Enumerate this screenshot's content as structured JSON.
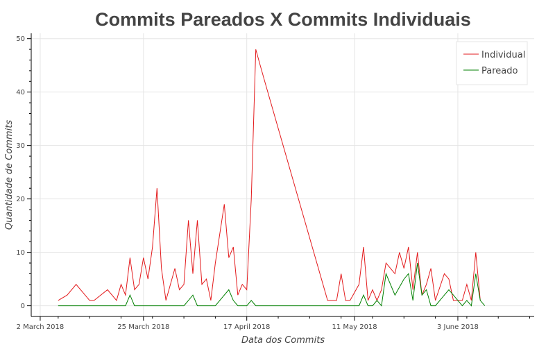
{
  "chart_data": {
    "type": "line",
    "title": "Commits Pareados X Commits Individuais",
    "xlabel": "Data dos Commits",
    "ylabel": "Quantidade de Commits",
    "xlim": [
      "2018-02-28",
      "2018-06-20"
    ],
    "ylim": [
      -2,
      51
    ],
    "x_ticks": [
      {
        "date": "2018-03-02",
        "label": "2 March 2018"
      },
      {
        "date": "2018-03-25",
        "label": "25 March 2018"
      },
      {
        "date": "2018-04-17",
        "label": "17 April 2018"
      },
      {
        "date": "2018-05-11",
        "label": "11 May 2018"
      },
      {
        "date": "2018-06-03",
        "label": "3 June 2018"
      }
    ],
    "x_minor_ticks": [
      "2018-03-06",
      "2018-03-13",
      "2018-03-20",
      "2018-03-27",
      "2018-04-03",
      "2018-04-10",
      "2018-04-24",
      "2018-05-01",
      "2018-05-08",
      "2018-05-15",
      "2018-05-22",
      "2018-05-29",
      "2018-06-05",
      "2018-06-12",
      "2018-06-19"
    ],
    "y_ticks": [
      0,
      10,
      20,
      30,
      40,
      50
    ],
    "grid": true,
    "legend": "top-right",
    "series": [
      {
        "name": "Individual",
        "color": "#e31a1c",
        "x": [
          "2018-03-06",
          "2018-03-08",
          "2018-03-10",
          "2018-03-13",
          "2018-03-14",
          "2018-03-17",
          "2018-03-19",
          "2018-03-20",
          "2018-03-21",
          "2018-03-22",
          "2018-03-23",
          "2018-03-24",
          "2018-03-25",
          "2018-03-26",
          "2018-03-27",
          "2018-03-28",
          "2018-03-29",
          "2018-03-30",
          "2018-04-01",
          "2018-04-02",
          "2018-04-03",
          "2018-04-04",
          "2018-04-05",
          "2018-04-06",
          "2018-04-07",
          "2018-04-08",
          "2018-04-09",
          "2018-04-10",
          "2018-04-12",
          "2018-04-13",
          "2018-04-14",
          "2018-04-15",
          "2018-04-16",
          "2018-04-17",
          "2018-04-18",
          "2018-04-19",
          "2018-04-20",
          "2018-04-21",
          "2018-05-05",
          "2018-05-07",
          "2018-05-08",
          "2018-05-09",
          "2018-05-10",
          "2018-05-12",
          "2018-05-13",
          "2018-05-14",
          "2018-05-15",
          "2018-05-16",
          "2018-05-17",
          "2018-05-18",
          "2018-05-20",
          "2018-05-21",
          "2018-05-22",
          "2018-05-23",
          "2018-05-24",
          "2018-05-25",
          "2018-05-26",
          "2018-05-27",
          "2018-05-28",
          "2018-05-29",
          "2018-05-31",
          "2018-06-01",
          "2018-06-02",
          "2018-06-03",
          "2018-06-04",
          "2018-06-05",
          "2018-06-06",
          "2018-06-07",
          "2018-06-08"
        ],
        "values": [
          1,
          2,
          4,
          1,
          1,
          3,
          1,
          4,
          2,
          9,
          3,
          4,
          9,
          5,
          11,
          22,
          7,
          1,
          7,
          3,
          4,
          16,
          6,
          16,
          4,
          5,
          1,
          8,
          19,
          9,
          11,
          2,
          4,
          3,
          20,
          48,
          45,
          42,
          1,
          1,
          6,
          1,
          1,
          4,
          11,
          1,
          3,
          1,
          3,
          8,
          6,
          10,
          7,
          11,
          3,
          10,
          2,
          4,
          7,
          1,
          6,
          5,
          1,
          1,
          1,
          4,
          1,
          10,
          1
        ]
      },
      {
        "name": "Pareado",
        "color": "#008000",
        "x": [
          "2018-03-06",
          "2018-03-20",
          "2018-03-21",
          "2018-03-22",
          "2018-03-23",
          "2018-03-30",
          "2018-04-03",
          "2018-04-04",
          "2018-04-05",
          "2018-04-06",
          "2018-04-09",
          "2018-04-10",
          "2018-04-12",
          "2018-04-13",
          "2018-04-14",
          "2018-04-15",
          "2018-04-16",
          "2018-04-17",
          "2018-04-18",
          "2018-04-19",
          "2018-05-05",
          "2018-05-07",
          "2018-05-09",
          "2018-05-12",
          "2018-05-13",
          "2018-05-14",
          "2018-05-15",
          "2018-05-16",
          "2018-05-17",
          "2018-05-18",
          "2018-05-20",
          "2018-05-22",
          "2018-05-23",
          "2018-05-24",
          "2018-05-25",
          "2018-05-26",
          "2018-05-27",
          "2018-05-28",
          "2018-05-29",
          "2018-05-31",
          "2018-06-01",
          "2018-06-02",
          "2018-06-04",
          "2018-06-05",
          "2018-06-06",
          "2018-06-07",
          "2018-06-08",
          "2018-06-09"
        ],
        "values": [
          0,
          0,
          0,
          2,
          0,
          0,
          0,
          1,
          2,
          0,
          0,
          0,
          2,
          3,
          1,
          0,
          0,
          0,
          1,
          0,
          0,
          0,
          0,
          0,
          2,
          0,
          0,
          1,
          0,
          6,
          2,
          5,
          6,
          1,
          8,
          2,
          3,
          0,
          0,
          2,
          3,
          2,
          0,
          1,
          0,
          6,
          1,
          0
        ]
      }
    ]
  }
}
